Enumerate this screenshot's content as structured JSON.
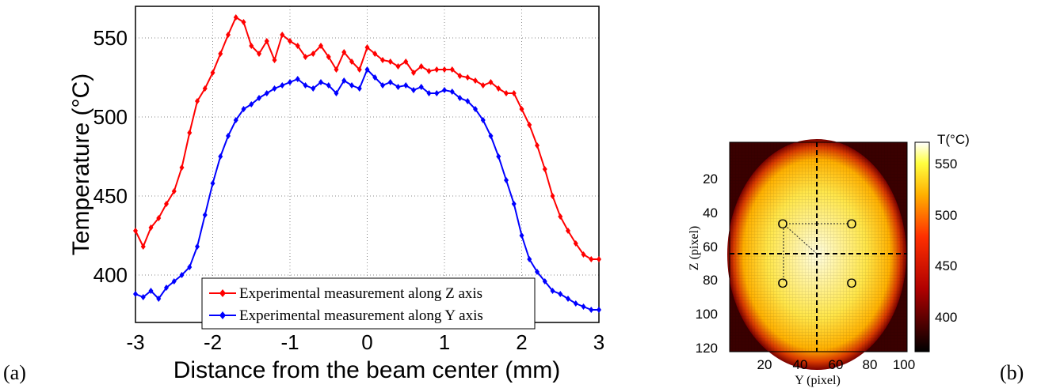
{
  "panel_labels": {
    "left": "(a)",
    "right": "(b)"
  },
  "chart_data": [
    {
      "type": "line",
      "xlabel": "Distance from the beam center (mm)",
      "ylabel": "Temperature (°C)",
      "xlim": [
        -3,
        3
      ],
      "ylim": [
        370,
        570
      ],
      "xticks": [
        "-3",
        "-2",
        "-1",
        "0",
        "1",
        "2",
        "3"
      ],
      "yticks": [
        "400",
        "450",
        "500",
        "550"
      ],
      "grid": true,
      "legend_position": "bottom-center",
      "series": [
        {
          "name": "Experimental measurement along Z axis",
          "color": "#ff0000",
          "x": [
            -3.0,
            -2.9,
            -2.8,
            -2.7,
            -2.6,
            -2.5,
            -2.4,
            -2.3,
            -2.2,
            -2.1,
            -2.0,
            -1.9,
            -1.8,
            -1.7,
            -1.6,
            -1.5,
            -1.4,
            -1.3,
            -1.2,
            -1.1,
            -1.0,
            -0.9,
            -0.8,
            -0.7,
            -0.6,
            -0.5,
            -0.4,
            -0.3,
            -0.2,
            -0.1,
            0.0,
            0.1,
            0.2,
            0.3,
            0.4,
            0.5,
            0.6,
            0.7,
            0.8,
            0.9,
            1.0,
            1.1,
            1.2,
            1.3,
            1.4,
            1.5,
            1.6,
            1.7,
            1.8,
            1.9,
            2.0,
            2.1,
            2.2,
            2.3,
            2.4,
            2.5,
            2.6,
            2.7,
            2.8,
            2.9,
            3.0
          ],
          "y": [
            428,
            418,
            430,
            436,
            445,
            453,
            468,
            490,
            510,
            518,
            528,
            540,
            552,
            563,
            560,
            545,
            540,
            548,
            536,
            552,
            548,
            545,
            538,
            540,
            545,
            538,
            530,
            541,
            535,
            530,
            544,
            540,
            536,
            535,
            532,
            535,
            528,
            532,
            529,
            530,
            530,
            530,
            526,
            525,
            523,
            520,
            522,
            518,
            515,
            515,
            505,
            495,
            482,
            467,
            450,
            437,
            428,
            420,
            413,
            410,
            410
          ]
        },
        {
          "name": "Experimental measurement along Y axis",
          "color": "#0000ff",
          "x": [
            -3.0,
            -2.9,
            -2.8,
            -2.7,
            -2.6,
            -2.5,
            -2.4,
            -2.3,
            -2.2,
            -2.1,
            -2.0,
            -1.9,
            -1.8,
            -1.7,
            -1.6,
            -1.5,
            -1.4,
            -1.3,
            -1.2,
            -1.1,
            -1.0,
            -0.9,
            -0.8,
            -0.7,
            -0.6,
            -0.5,
            -0.4,
            -0.3,
            -0.2,
            -0.1,
            0.0,
            0.1,
            0.2,
            0.3,
            0.4,
            0.5,
            0.6,
            0.7,
            0.8,
            0.9,
            1.0,
            1.1,
            1.2,
            1.3,
            1.4,
            1.5,
            1.6,
            1.7,
            1.8,
            1.9,
            2.0,
            2.1,
            2.2,
            2.3,
            2.4,
            2.5,
            2.6,
            2.7,
            2.8,
            2.9,
            3.0
          ],
          "y": [
            388,
            386,
            390,
            385,
            392,
            396,
            400,
            405,
            418,
            438,
            458,
            475,
            488,
            498,
            505,
            508,
            512,
            515,
            518,
            520,
            522,
            524,
            520,
            518,
            522,
            520,
            515,
            523,
            520,
            518,
            530,
            525,
            520,
            522,
            519,
            520,
            517,
            519,
            515,
            515,
            517,
            516,
            512,
            510,
            505,
            498,
            488,
            475,
            460,
            445,
            425,
            410,
            402,
            396,
            390,
            388,
            385,
            382,
            380,
            378,
            378
          ]
        }
      ]
    },
    {
      "type": "heatmap",
      "xlabel": "Y (pixel)",
      "ylabel": "Z (pixel)",
      "xticks": [
        "20",
        "40",
        "60",
        "80",
        "100"
      ],
      "yticks": [
        "20",
        "40",
        "60",
        "80",
        "100",
        "120"
      ],
      "xlim": [
        0,
        100
      ],
      "ylim": [
        0,
        125
      ],
      "colorbar_label": "T(°C)",
      "colorbar_ticks": [
        "400",
        "450",
        "500",
        "550"
      ],
      "colorbar_range": [
        365,
        570
      ],
      "colormap": "hot",
      "markers": [
        "O",
        "O",
        "O",
        "O"
      ]
    }
  ]
}
